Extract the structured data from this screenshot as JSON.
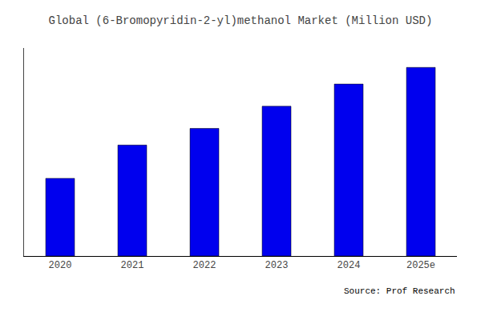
{
  "chart_data": {
    "type": "bar",
    "title": "Global (6-Bromopyridin-2-yl)methanol Market (Million USD)",
    "categories": [
      "2020",
      "2021",
      "2022",
      "2023",
      "2024",
      "2025e"
    ],
    "values": [
      28,
      40,
      46,
      54,
      62,
      68
    ],
    "color": "#0000ee",
    "ylim": [
      0,
      75
    ],
    "grid": false,
    "tick_labels": "x",
    "annotations": [
      "Source: Prof Research"
    ]
  }
}
